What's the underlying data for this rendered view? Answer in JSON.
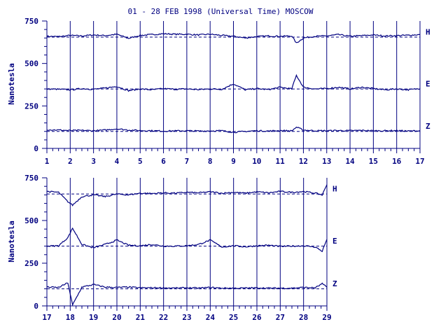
{
  "colors": {
    "ink": "#000080",
    "background": "#ffffff"
  },
  "chart_data": [
    {
      "type": "line",
      "title": "01 - 28 FEB 1998 (Universal Time) MOSCOW",
      "ylabel": "Nanotesla",
      "xlabel": "",
      "xlim": [
        1,
        17
      ],
      "ylim": [
        0,
        750
      ],
      "x_ticks": [
        "1",
        "2",
        "3",
        "4",
        "5",
        "6",
        "7",
        "8",
        "9",
        "10",
        "11",
        "12",
        "13",
        "14",
        "15",
        "16",
        "17"
      ],
      "y_ticks": [
        "0",
        "250",
        "500",
        "750"
      ],
      "grid": "vertical lines at each day",
      "series": [
        {
          "name": "H",
          "baseline": 655,
          "x": [
            1,
            1.5,
            2,
            2.5,
            3,
            3.5,
            4,
            4.5,
            5,
            5.5,
            6,
            6.5,
            7,
            7.5,
            8,
            8.5,
            9,
            9.5,
            10,
            10.5,
            11,
            11.5,
            11.7,
            12,
            12.5,
            13,
            13.5,
            14,
            14.5,
            15,
            15.5,
            16,
            16.5,
            17
          ],
          "values": [
            660,
            658,
            665,
            662,
            668,
            664,
            672,
            648,
            665,
            670,
            675,
            672,
            672,
            668,
            672,
            665,
            660,
            650,
            658,
            662,
            660,
            662,
            620,
            650,
            660,
            662,
            670,
            660,
            664,
            668,
            662,
            664,
            666,
            670
          ]
        },
        {
          "name": "E",
          "baseline": 350,
          "x": [
            1,
            1.5,
            2,
            2.5,
            3,
            3.5,
            4,
            4.5,
            5,
            5.5,
            6,
            6.5,
            7,
            7.5,
            8,
            8.5,
            9,
            9.5,
            10,
            10.5,
            11,
            11.5,
            11.7,
            12,
            12.5,
            13,
            13.5,
            14,
            14.5,
            15,
            15.5,
            16,
            16.5,
            17
          ],
          "values": [
            350,
            348,
            345,
            352,
            348,
            355,
            365,
            340,
            350,
            345,
            352,
            348,
            350,
            346,
            350,
            348,
            380,
            345,
            352,
            346,
            360,
            350,
            430,
            360,
            350,
            352,
            360,
            350,
            360,
            352,
            345,
            350,
            345,
            352
          ]
        },
        {
          "name": "Z",
          "baseline": 100,
          "x": [
            1,
            1.5,
            2,
            2.5,
            3,
            3.5,
            4,
            4.5,
            5,
            5.5,
            6,
            6.5,
            7,
            7.5,
            8,
            8.5,
            9,
            9.5,
            10,
            10.5,
            11,
            11.5,
            11.7,
            12,
            12.5,
            13,
            13.5,
            14,
            14.5,
            15,
            15.5,
            16,
            16.5,
            17
          ],
          "values": [
            110,
            108,
            105,
            106,
            104,
            108,
            115,
            108,
            105,
            104,
            102,
            103,
            104,
            102,
            103,
            104,
            95,
            100,
            104,
            102,
            105,
            103,
            125,
            108,
            104,
            104,
            105,
            104,
            106,
            104,
            104,
            105,
            102,
            104
          ]
        }
      ]
    },
    {
      "type": "line",
      "title": "",
      "ylabel": "Nanotesla",
      "xlabel": "",
      "xlim": [
        17,
        29
      ],
      "ylim": [
        0,
        750
      ],
      "x_ticks": [
        "17",
        "18",
        "19",
        "20",
        "21",
        "22",
        "23",
        "24",
        "25",
        "26",
        "27",
        "28",
        "29"
      ],
      "y_ticks": [
        "0",
        "250",
        "500",
        "750"
      ],
      "grid": "vertical lines at each day",
      "series": [
        {
          "name": "H",
          "baseline": 655,
          "x": [
            17,
            17.5,
            17.9,
            18.1,
            18.5,
            19,
            19.5,
            20,
            20.5,
            21,
            21.5,
            22,
            22.5,
            23,
            23.5,
            24,
            24.5,
            25,
            25.5,
            26,
            26.5,
            27,
            27.5,
            28,
            28.5,
            28.8,
            29
          ],
          "values": [
            670,
            665,
            610,
            590,
            640,
            650,
            640,
            655,
            650,
            660,
            658,
            662,
            660,
            665,
            662,
            668,
            660,
            665,
            660,
            668,
            662,
            670,
            665,
            670,
            660,
            650,
            710
          ]
        },
        {
          "name": "E",
          "baseline": 350,
          "x": [
            17,
            17.5,
            17.9,
            18.1,
            18.5,
            19,
            19.5,
            20,
            20.5,
            21,
            21.5,
            22,
            22.5,
            23,
            23.5,
            24,
            24.5,
            25,
            25.5,
            26,
            26.5,
            27,
            27.5,
            28,
            28.5,
            28.8,
            29
          ],
          "values": [
            350,
            352,
            400,
            455,
            360,
            340,
            360,
            385,
            355,
            352,
            360,
            350,
            350,
            352,
            360,
            385,
            345,
            352,
            346,
            352,
            355,
            348,
            350,
            352,
            345,
            320,
            390
          ]
        },
        {
          "name": "Z",
          "baseline": 100,
          "x": [
            17,
            17.5,
            17.9,
            18.1,
            18.5,
            19,
            19.5,
            20,
            20.5,
            21,
            21.5,
            22,
            22.5,
            23,
            23.5,
            24,
            24.5,
            25,
            25.5,
            26,
            26.5,
            27,
            27.5,
            28,
            28.5,
            28.8,
            29
          ],
          "values": [
            110,
            108,
            135,
            5,
            110,
            125,
            110,
            108,
            110,
            106,
            106,
            106,
            104,
            106,
            104,
            108,
            104,
            104,
            104,
            106,
            104,
            104,
            104,
            108,
            106,
            130,
            108
          ]
        }
      ]
    }
  ]
}
